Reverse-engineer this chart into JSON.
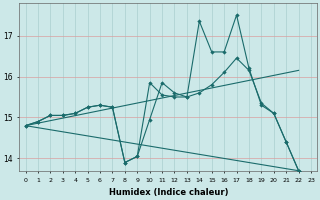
{
  "xlabel": "Humidex (Indice chaleur)",
  "xlim": [
    -0.5,
    23.5
  ],
  "ylim": [
    13.7,
    17.8
  ],
  "yticks": [
    14,
    15,
    16,
    17
  ],
  "xticks": [
    0,
    1,
    2,
    3,
    4,
    5,
    6,
    7,
    8,
    9,
    10,
    11,
    12,
    13,
    14,
    15,
    16,
    17,
    18,
    19,
    20,
    21,
    22,
    23
  ],
  "bg_color": "#cce8e8",
  "grid_color": "#aacfcf",
  "line_color": "#1a6b6b",
  "line1_x": [
    0,
    1,
    2,
    3,
    4,
    5,
    6,
    7,
    8,
    9,
    10,
    11,
    12,
    13,
    14,
    15,
    16,
    17,
    18,
    19,
    20,
    21,
    22
  ],
  "line1_y": [
    14.8,
    14.9,
    15.05,
    15.05,
    15.1,
    15.25,
    15.3,
    15.25,
    13.9,
    14.05,
    14.95,
    15.85,
    15.6,
    15.5,
    17.35,
    16.6,
    16.6,
    17.5,
    16.2,
    15.3,
    15.1,
    14.4,
    13.7
  ],
  "line2_x": [
    0,
    1,
    2,
    3,
    4,
    5,
    6,
    7,
    8,
    9,
    10,
    11,
    12,
    13,
    14,
    15,
    16,
    17,
    18,
    19,
    20,
    21,
    22
  ],
  "line2_y": [
    14.8,
    14.9,
    15.05,
    15.05,
    15.1,
    15.25,
    15.3,
    15.25,
    13.9,
    14.05,
    15.85,
    15.55,
    15.5,
    15.5,
    15.6,
    15.8,
    16.1,
    16.45,
    16.15,
    15.35,
    15.1,
    14.4,
    13.7
  ],
  "line3_x": [
    0,
    22
  ],
  "line3_y": [
    14.8,
    13.7
  ],
  "line4_x": [
    0,
    22
  ],
  "line4_y": [
    14.8,
    16.15
  ]
}
